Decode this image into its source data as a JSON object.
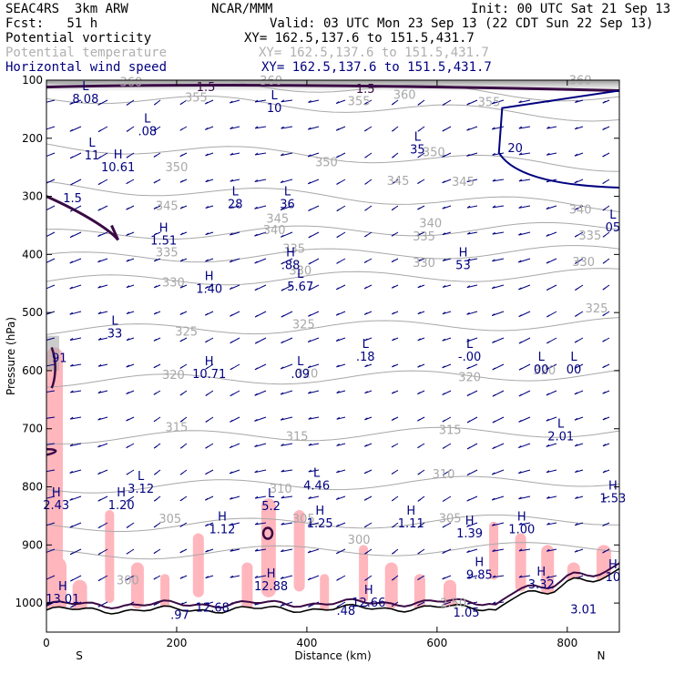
{
  "header": {
    "model": "SEAC4RS  3km ARW",
    "org": "NCAR/MMM",
    "init": "Init: 00 UTC Sat 21 Sep 13",
    "fcst": "Fcst:   51 h",
    "valid": "Valid: 03 UTC Mon 23 Sep 13 (22 CDT Sun 22 Sep 13)",
    "fields": [
      {
        "name": "Potential vorticity",
        "xy": "XY= 162.5,137.6 to 151.5,431.7",
        "color": "#000000"
      },
      {
        "name": "Potential temperature",
        "xy": "XY= 162.5,137.6 to 151.5,431.7",
        "color": "#b0b0b0"
      },
      {
        "name": "Horizontal wind speed",
        "xy": "XY= 162.5,137.6 to 151.5,431.7",
        "color": "#000080"
      }
    ]
  },
  "chart_data": {
    "type": "cross-section",
    "xlabel": "Distance (km)",
    "ylabel": "Pressure (hPa)",
    "xlim": [
      0,
      880
    ],
    "ylim": [
      1050,
      100
    ],
    "x_ticks": [
      0,
      200,
      400,
      600,
      800
    ],
    "y_ticks": [
      100,
      200,
      300,
      400,
      500,
      600,
      700,
      800,
      900,
      1000
    ],
    "x_end_labels": {
      "left": "S",
      "right": "N"
    },
    "theta_labels": [
      {
        "x": 130,
        "p": 110,
        "text": "360"
      },
      {
        "x": 345,
        "p": 108,
        "text": "360"
      },
      {
        "x": 550,
        "p": 132,
        "text": "360"
      },
      {
        "x": 820,
        "p": 107,
        "text": "360"
      },
      {
        "x": 230,
        "p": 137,
        "text": "355"
      },
      {
        "x": 480,
        "p": 143,
        "text": "355"
      },
      {
        "x": 680,
        "p": 145,
        "text": "355"
      },
      {
        "x": 430,
        "p": 248,
        "text": "350"
      },
      {
        "x": 200,
        "p": 257,
        "text": "350"
      },
      {
        "x": 595,
        "p": 231,
        "text": "350"
      },
      {
        "x": 540,
        "p": 280,
        "text": "345"
      },
      {
        "x": 185,
        "p": 323,
        "text": "345"
      },
      {
        "x": 355,
        "p": 345,
        "text": "345"
      },
      {
        "x": 640,
        "p": 282,
        "text": "345"
      },
      {
        "x": 350,
        "p": 365,
        "text": "340"
      },
      {
        "x": 590,
        "p": 353,
        "text": "340"
      },
      {
        "x": 820,
        "p": 330,
        "text": "340"
      },
      {
        "x": 185,
        "p": 403,
        "text": "335"
      },
      {
        "x": 380,
        "p": 397,
        "text": "335"
      },
      {
        "x": 580,
        "p": 376,
        "text": "335"
      },
      {
        "x": 835,
        "p": 374,
        "text": "335"
      },
      {
        "x": 195,
        "p": 455,
        "text": "330"
      },
      {
        "x": 390,
        "p": 435,
        "text": "330"
      },
      {
        "x": 580,
        "p": 421,
        "text": "330"
      },
      {
        "x": 825,
        "p": 420,
        "text": "330"
      },
      {
        "x": 215,
        "p": 540,
        "text": "325"
      },
      {
        "x": 395,
        "p": 527,
        "text": "325"
      },
      {
        "x": 845,
        "p": 500,
        "text": "325"
      },
      {
        "x": 195,
        "p": 614,
        "text": "320"
      },
      {
        "x": 400,
        "p": 612,
        "text": "320"
      },
      {
        "x": 650,
        "p": 618,
        "text": "320"
      },
      {
        "x": 765,
        "p": 606,
        "text": "320"
      },
      {
        "x": 200,
        "p": 704,
        "text": "315"
      },
      {
        "x": 385,
        "p": 720,
        "text": "315"
      },
      {
        "x": 620,
        "p": 709,
        "text": "315"
      },
      {
        "x": 360,
        "p": 810,
        "text": "310"
      },
      {
        "x": 610,
        "p": 785,
        "text": "310"
      },
      {
        "x": 190,
        "p": 862,
        "text": "305"
      },
      {
        "x": 395,
        "p": 862,
        "text": "305"
      },
      {
        "x": 620,
        "p": 861,
        "text": "305"
      },
      {
        "x": 480,
        "p": 898,
        "text": "300"
      },
      {
        "x": 125,
        "p": 968,
        "text": "300"
      },
      {
        "x": 625,
        "p": 1007,
        "text": "2.50"
      }
    ],
    "hl_markers": [
      {
        "x": 60,
        "p": 139,
        "text": "L",
        "value": "8.08"
      },
      {
        "x": 155,
        "p": 195,
        "text": "L",
        "value": ".08"
      },
      {
        "x": 70,
        "p": 236,
        "text": "L",
        "value": "11"
      },
      {
        "x": 110,
        "p": 257,
        "text": "H",
        "value": "10.61"
      },
      {
        "x": 350,
        "p": 155,
        "text": "L",
        "value": "10"
      },
      {
        "x": 570,
        "p": 226,
        "text": "L",
        "value": "35"
      },
      {
        "x": 720,
        "p": 224,
        "text": "",
        "value": "20"
      },
      {
        "x": 40,
        "p": 310,
        "text": "",
        "value": "1.5"
      },
      {
        "x": 290,
        "p": 320,
        "text": "L",
        "value": "28"
      },
      {
        "x": 370,
        "p": 320,
        "text": "L",
        "value": "36"
      },
      {
        "x": 180,
        "p": 383,
        "text": "H",
        "value": "1.51"
      },
      {
        "x": 375,
        "p": 425,
        "text": "H",
        "value": ".88"
      },
      {
        "x": 640,
        "p": 425,
        "text": "H",
        "value": "53"
      },
      {
        "x": 870,
        "p": 360,
        "text": "L",
        "value": "05"
      },
      {
        "x": 250,
        "p": 466,
        "text": "H",
        "value": "1.40"
      },
      {
        "x": 390,
        "p": 462,
        "text": "L",
        "value": "5.67"
      },
      {
        "x": 105,
        "p": 543,
        "text": "L",
        "value": "33"
      },
      {
        "x": 20,
        "p": 585,
        "text": "",
        "value": "91"
      },
      {
        "x": 490,
        "p": 583,
        "text": "L",
        "value": ".18"
      },
      {
        "x": 250,
        "p": 613,
        "text": "H",
        "value": "10.71"
      },
      {
        "x": 390,
        "p": 613,
        "text": "L",
        "value": ".09"
      },
      {
        "x": 650,
        "p": 583,
        "text": "L",
        "value": "-.00"
      },
      {
        "x": 760,
        "p": 605,
        "text": "L",
        "value": "00"
      },
      {
        "x": 810,
        "p": 605,
        "text": "L",
        "value": "00"
      },
      {
        "x": 790,
        "p": 720,
        "text": "L",
        "value": "2.01"
      },
      {
        "x": 145,
        "p": 810,
        "text": "L",
        "value": "3.12"
      },
      {
        "x": 415,
        "p": 805,
        "text": "L",
        "value": "4.46"
      },
      {
        "x": 15,
        "p": 838,
        "text": "H",
        "value": "2.43"
      },
      {
        "x": 115,
        "p": 838,
        "text": "H",
        "value": "1.20"
      },
      {
        "x": 870,
        "p": 827,
        "text": "H",
        "value": "1.53"
      },
      {
        "x": 345,
        "p": 840,
        "text": "L",
        "value": "5.2"
      },
      {
        "x": 270,
        "p": 880,
        "text": "H",
        "value": "1.12"
      },
      {
        "x": 420,
        "p": 870,
        "text": "H",
        "value": "1.25"
      },
      {
        "x": 560,
        "p": 870,
        "text": "H",
        "value": "1.11"
      },
      {
        "x": 650,
        "p": 887,
        "text": "H",
        "value": "1.39"
      },
      {
        "x": 730,
        "p": 880,
        "text": "H",
        "value": "1.00"
      },
      {
        "x": 665,
        "p": 958,
        "text": "H",
        "value": "9.85"
      },
      {
        "x": 760,
        "p": 975,
        "text": "H",
        "value": "3.32"
      },
      {
        "x": 870,
        "p": 962,
        "text": "H",
        "value": "10"
      },
      {
        "x": 25,
        "p": 1000,
        "text": "H",
        "value": "13.01"
      },
      {
        "x": 345,
        "p": 978,
        "text": "H",
        "value": "12.88"
      },
      {
        "x": 495,
        "p": 1006,
        "text": "H",
        "value": "12.66"
      },
      {
        "x": 255,
        "p": 1015,
        "text": "",
        "value": "12.68"
      },
      {
        "x": 205,
        "p": 1027,
        "text": "",
        "value": ".97"
      },
      {
        "x": 460,
        "p": 1020,
        "text": "",
        "value": ".48"
      },
      {
        "x": 645,
        "p": 1023,
        "text": "",
        "value": "1.05"
      },
      {
        "x": 825,
        "p": 1018,
        "text": "",
        "value": "3.01"
      }
    ],
    "pv_1_5_labels": [
      {
        "x": 245,
        "p": 119,
        "text": "1.5"
      },
      {
        "x": 490,
        "p": 122,
        "text": "1.5"
      }
    ],
    "colors": {
      "pv": "#3a0a45",
      "theta": "#a8a8a8",
      "wind": "#000080",
      "shade": "#ffb6bd",
      "terrain": "#000000",
      "shade_top": "#999999"
    }
  }
}
